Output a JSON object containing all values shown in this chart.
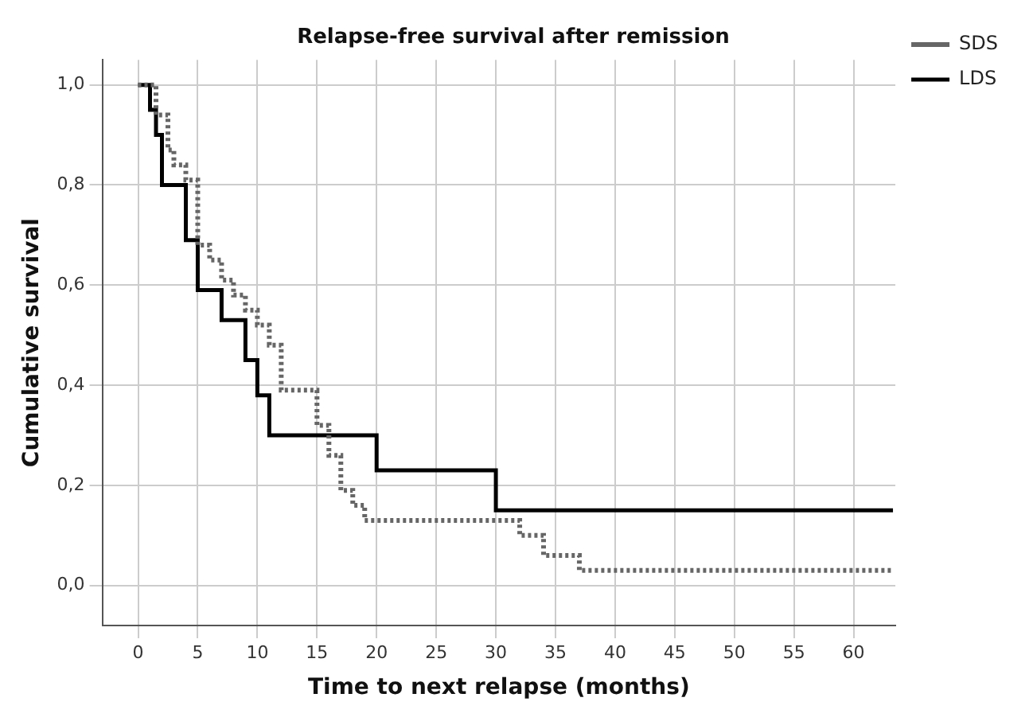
{
  "chart_data": {
    "type": "step",
    "title": "Relapse-free survival after remission",
    "xlabel": "Time to next relapse (months)",
    "ylabel": "Cumulative survival",
    "xlim": [
      -3,
      63.5
    ],
    "xticks": [
      0,
      5,
      10,
      15,
      20,
      25,
      30,
      35,
      40,
      45,
      50,
      55,
      60
    ],
    "ylim": [
      -0.08,
      1.05
    ],
    "yticks": [
      {
        "value": 0,
        "label": "0,0"
      },
      {
        "value": 0.2,
        "label": "0,2"
      },
      {
        "value": 0.4,
        "label": "0,4"
      },
      {
        "value": 0.6,
        "label": "0,6"
      },
      {
        "value": 0.8,
        "label": "0,8"
      },
      {
        "value": 1,
        "label": "1,0"
      }
    ],
    "grid": true,
    "legend": "top right",
    "series": [
      {
        "name": "SDS",
        "color": "#666666",
        "line_style": "dotted",
        "x": [
          0,
          1.5,
          2.5,
          3,
          4,
          5,
          6,
          7,
          8,
          9,
          10,
          11,
          12,
          15,
          16,
          17,
          18,
          19,
          32,
          34,
          37,
          63.3
        ],
        "values": [
          1,
          0.94,
          0.87,
          0.84,
          0.81,
          0.68,
          0.65,
          0.61,
          0.58,
          0.55,
          0.52,
          0.48,
          0.39,
          0.32,
          0.26,
          0.19,
          0.16,
          0.13,
          0.1,
          0.06,
          0.03,
          0.03
        ]
      },
      {
        "name": "LDS",
        "color": "#000000",
        "line_style": "solid",
        "x": [
          0,
          1,
          1.5,
          2,
          4,
          5,
          7,
          9,
          10,
          11,
          20,
          30,
          63.3
        ],
        "values": [
          1,
          0.95,
          0.9,
          0.8,
          0.69,
          0.59,
          0.53,
          0.45,
          0.38,
          0.3,
          0.23,
          0.15,
          0.15
        ]
      }
    ]
  }
}
